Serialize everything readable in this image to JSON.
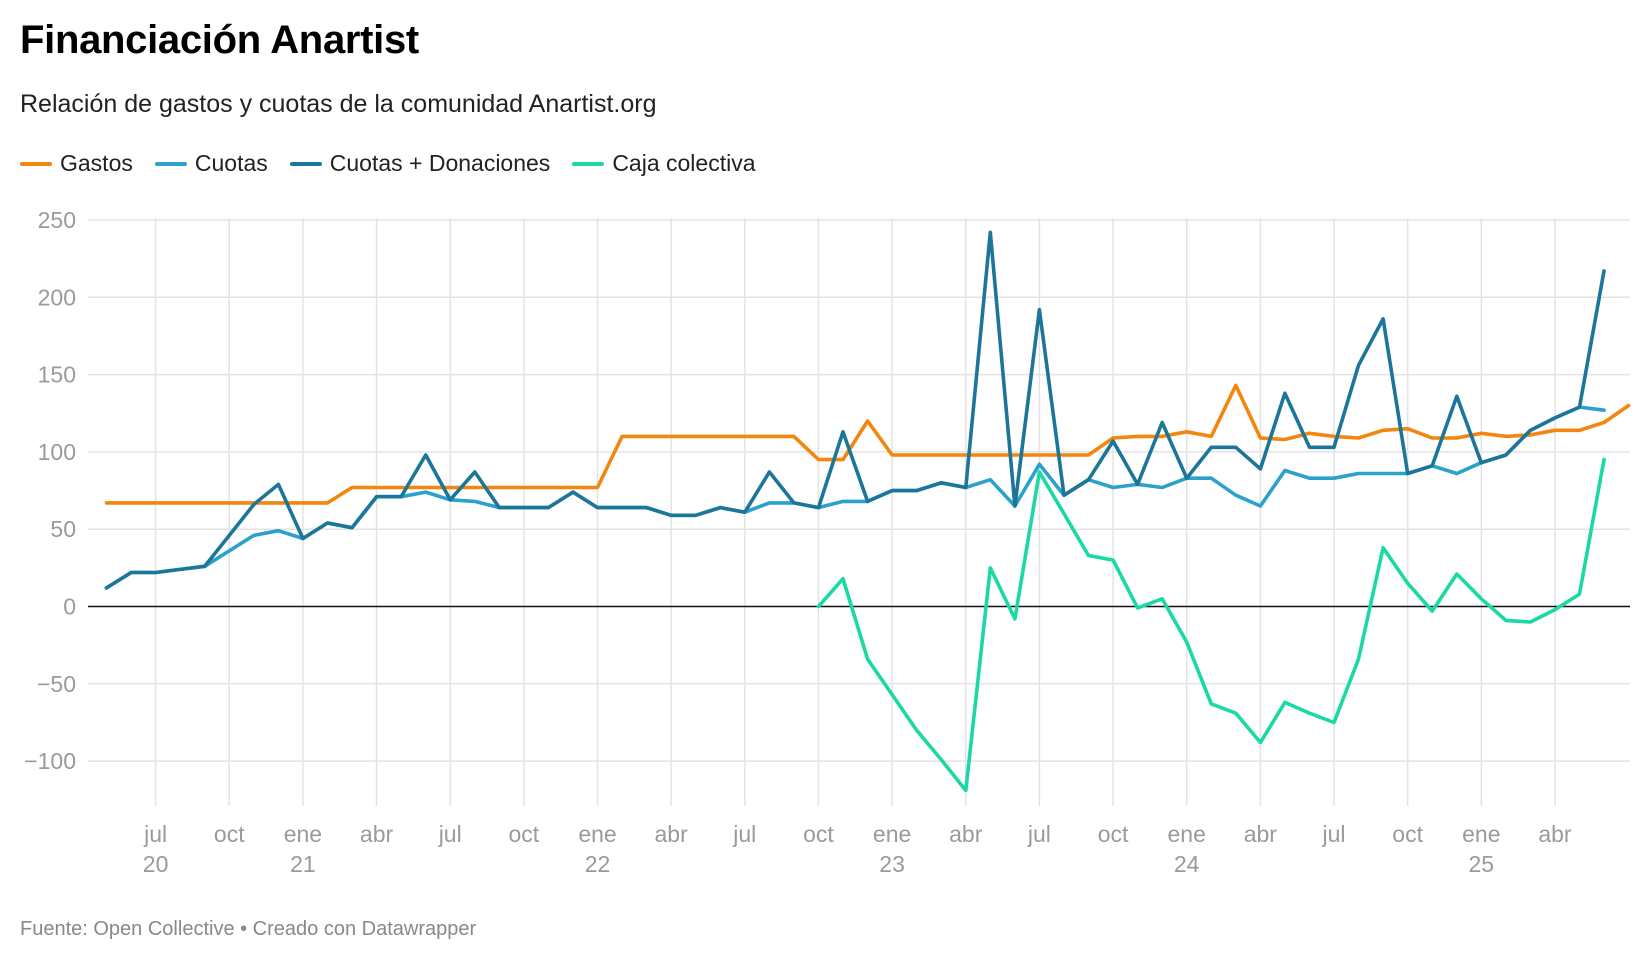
{
  "title": "Financiación Anartist",
  "subtitle": "Relación de gastos y cuotas de la comunidad Anartist.org",
  "footer": "Fuente: Open Collective • Creado con Datawrapper",
  "colors": {
    "gastos": "#f2860f",
    "cuotas": "#2ba1cc",
    "cuotas_donaciones": "#1c7699",
    "caja": "#1ad9a4",
    "grid": "#e3e3e3",
    "zero": "#111111"
  },
  "chart_data": {
    "type": "line",
    "x_unit": "month",
    "x_start": "2020-05",
    "ylim": [
      -120,
      250
    ],
    "y_ticks": [
      250,
      200,
      150,
      100,
      50,
      0,
      -50,
      -100
    ],
    "y_tick_labels": [
      "250",
      "200",
      "150",
      "100",
      "50",
      "0",
      "−50",
      "−100"
    ],
    "x_ticks": [
      {
        "month": "2020-07",
        "label": "jul",
        "year": "20"
      },
      {
        "month": "2020-10",
        "label": "oct",
        "year": ""
      },
      {
        "month": "2021-01",
        "label": "ene",
        "year": "21"
      },
      {
        "month": "2021-04",
        "label": "abr",
        "year": ""
      },
      {
        "month": "2021-07",
        "label": "jul",
        "year": ""
      },
      {
        "month": "2021-10",
        "label": "oct",
        "year": ""
      },
      {
        "month": "2022-01",
        "label": "ene",
        "year": "22"
      },
      {
        "month": "2022-04",
        "label": "abr",
        "year": ""
      },
      {
        "month": "2022-07",
        "label": "jul",
        "year": ""
      },
      {
        "month": "2022-10",
        "label": "oct",
        "year": ""
      },
      {
        "month": "2023-01",
        "label": "ene",
        "year": "23"
      },
      {
        "month": "2023-04",
        "label": "abr",
        "year": ""
      },
      {
        "month": "2023-07",
        "label": "jul",
        "year": ""
      },
      {
        "month": "2023-10",
        "label": "oct",
        "year": ""
      },
      {
        "month": "2024-01",
        "label": "ene",
        "year": "24"
      },
      {
        "month": "2024-04",
        "label": "abr",
        "year": ""
      },
      {
        "month": "2024-07",
        "label": "jul",
        "year": ""
      },
      {
        "month": "2024-10",
        "label": "oct",
        "year": ""
      },
      {
        "month": "2025-01",
        "label": "ene",
        "year": "25"
      },
      {
        "month": "2025-04",
        "label": "abr",
        "year": ""
      }
    ],
    "series": [
      {
        "name": "Gastos",
        "color_key": "gastos",
        "start": "2020-05",
        "values": [
          67,
          67,
          67,
          67,
          67,
          67,
          67,
          67,
          67,
          67,
          77,
          77,
          77,
          77,
          77,
          77,
          77,
          77,
          77,
          77,
          77,
          110,
          110,
          110,
          110,
          110,
          110,
          110,
          110,
          95,
          95,
          120,
          98,
          98,
          98,
          98,
          98,
          98,
          98,
          98,
          98,
          109,
          110,
          110,
          113,
          110,
          143,
          109,
          108,
          112,
          110,
          109,
          114,
          115,
          109,
          109,
          112,
          110,
          111,
          114,
          114,
          119,
          130
        ]
      },
      {
        "name": "Cuotas",
        "color_key": "cuotas",
        "start": "2020-05",
        "values": [
          12,
          22,
          22,
          24,
          26,
          36,
          46,
          49,
          44,
          54,
          51,
          71,
          71,
          74,
          69,
          68,
          64,
          64,
          64,
          74,
          64,
          64,
          64,
          59,
          59,
          64,
          61,
          67,
          67,
          64,
          68,
          68,
          75,
          75,
          80,
          77,
          82,
          65,
          92,
          72,
          82,
          77,
          79,
          77,
          83,
          83,
          72,
          65,
          88,
          83,
          83,
          86,
          86,
          86,
          91,
          86,
          93,
          98,
          114,
          122,
          129,
          127
        ]
      },
      {
        "name": "Cuotas + Donaciones",
        "color_key": "cuotas_donaciones",
        "start": "2020-05",
        "values": [
          12,
          22,
          22,
          24,
          26,
          46,
          66,
          79,
          44,
          54,
          51,
          71,
          71,
          98,
          69,
          87,
          64,
          64,
          64,
          74,
          64,
          64,
          64,
          59,
          59,
          64,
          61,
          87,
          67,
          64,
          113,
          68,
          75,
          75,
          80,
          77,
          242,
          65,
          192,
          72,
          82,
          107,
          79,
          119,
          83,
          103,
          103,
          89,
          138,
          103,
          103,
          156,
          186,
          86,
          91,
          136,
          93,
          98,
          114,
          122,
          129,
          217
        ]
      },
      {
        "name": "Caja colectiva",
        "color_key": "caja",
        "start": "2022-10",
        "values": [
          0,
          18,
          -34,
          -57,
          -80,
          -99,
          -119,
          25,
          -8,
          87,
          60,
          33,
          30,
          -1,
          5,
          -23,
          -63,
          -69,
          -88,
          -62,
          -69,
          -75,
          -34,
          38,
          15,
          -3,
          21,
          5,
          -9,
          -10,
          -2,
          8,
          95
        ]
      }
    ]
  }
}
